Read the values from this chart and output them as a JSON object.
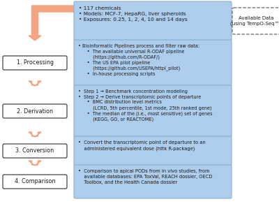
{
  "bg_color": "#ffffff",
  "box_bg": "#aeccec",
  "box_edge": "#8ab0d0",
  "label_bg": "#ffffff",
  "label_edge": "#444444",
  "arrow_color": "#f5a07a",
  "dashed_box_bg": "#ffffff",
  "dashed_box_edge": "#666666",
  "text_color": "#1a1a1a",
  "labels": [
    "1. Processing",
    "2. Derivation",
    "3. Conversion",
    "4. Comparison"
  ],
  "box1_text": "• 117 chemicals\n• Models: MCF-7, HepaRG, liver spheroids\n• Exposures: 0.25, 1, 2, 4, 10 and 14 days",
  "box2_text": "• Bioinformatic Pipelines process and filter raw data:\n      •  The available universal R-ODAF pipeline\n          (https://github.com/R-ODAF/)\n      •  The US EPA pilot pipeline\n          (https://github.com/USEPA/httpl_pilot)\n      •  In-house processing scripts",
  "box3_text": "•  Step 1 → Benchmark concentration modeling\n•  Step 2 → Derive transcriptomic points of departure\n      •  BMC distribution level metrics\n          (LCRD, 5th percentile, 1st mode, 25th ranked gene)\n      •  The median of the (i.e., most sensitive) set of genes\n          (KEGG, GO, or REACTOME)",
  "box4_text": "•  Convert the transcriptomic point of departure to an\n    administered equivalent dose (httk R-package)",
  "box5_text": "•  Comparison to apical PODs from in vivo studies, from\n    available databases: EPA ToxVal, REACH dossier, OECD\n    Toolbox, and the Health Canada dossier",
  "dashed_text": "Available Data\n(using TempO-Seq™)"
}
